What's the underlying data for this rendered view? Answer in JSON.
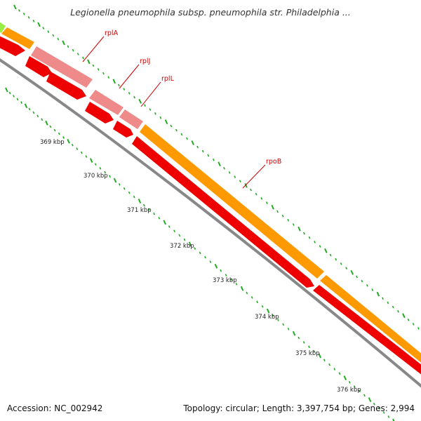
{
  "title": "Legionella pneumophila subsp. pneumophila str. Philadelphia ...",
  "footer": {
    "accession": "Accession: NC_002942",
    "summary": "Topology: circular; Length: 3,397,754 bp; Genes: 2,994"
  },
  "colors": {
    "background": "#ffffff",
    "cds_outer": "#ff9900",
    "cds_outer_pale": "#ee8a8a",
    "cds_outer_start": "#99ee44",
    "cds_inner": "#ee0000",
    "backbone": "#888888",
    "tick": "#22aa22",
    "label": "#cc0000"
  },
  "position_ticks": [
    {
      "label": "369 kbp"
    },
    {
      "label": "370 kbp"
    },
    {
      "label": "371 kbp"
    },
    {
      "label": "372 kbp"
    },
    {
      "label": "373 kbp"
    },
    {
      "label": "374 kbp"
    },
    {
      "label": "375 kbp"
    },
    {
      "label": "376 kbp"
    }
  ],
  "genes": [
    {
      "name": "rplA"
    },
    {
      "name": "rplJ"
    },
    {
      "name": "rplL"
    },
    {
      "name": "rpoB"
    }
  ]
}
